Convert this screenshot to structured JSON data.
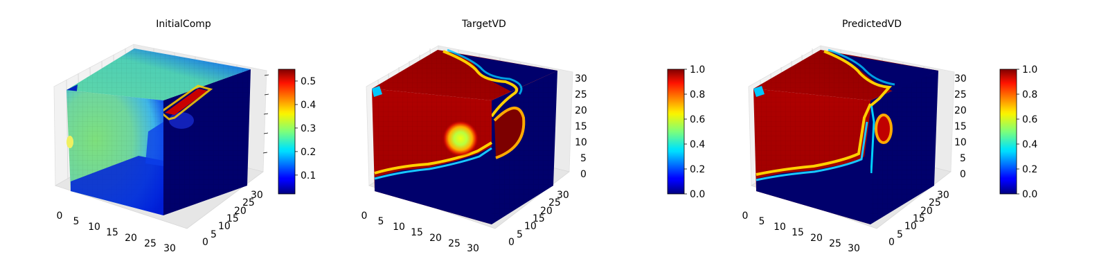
{
  "colors": {
    "colormap": "jet",
    "axis_pane": "#f2f2f2",
    "grid": "#d6d6d6"
  },
  "chart_data": [
    {
      "type": "voxel-3d",
      "title": "InitialComp",
      "x_ticks": [
        "0",
        "5",
        "10",
        "15",
        "20",
        "25",
        "30"
      ],
      "y_ticks": [
        "0",
        "5",
        "10",
        "15",
        "20",
        "25",
        "30"
      ],
      "z_ticks": [],
      "colorbar": {
        "range": [
          0.02,
          0.55
        ],
        "ticks": [
          "0.1",
          "0.2",
          "0.3",
          "0.4",
          "0.5"
        ],
        "tick_values": [
          0.1,
          0.2,
          0.3,
          0.4,
          0.5
        ]
      }
    },
    {
      "type": "voxel-3d",
      "title": "TargetVD",
      "x_ticks": [
        "0",
        "5",
        "10",
        "15",
        "20",
        "25",
        "30"
      ],
      "y_ticks": [
        "0",
        "5",
        "10",
        "15",
        "20",
        "25",
        "30"
      ],
      "z_ticks": [
        "0",
        "5",
        "10",
        "15",
        "20",
        "25",
        "30"
      ],
      "colorbar": {
        "range": [
          0,
          1
        ],
        "ticks": [
          "0.0",
          "0.2",
          "0.4",
          "0.6",
          "0.8",
          "1.0"
        ],
        "tick_values": [
          0,
          0.2,
          0.4,
          0.6,
          0.8,
          1.0
        ]
      }
    },
    {
      "type": "voxel-3d",
      "title": "PredictedVD",
      "x_ticks": [
        "0",
        "5",
        "10",
        "15",
        "20",
        "25",
        "30"
      ],
      "y_ticks": [
        "0",
        "5",
        "10",
        "15",
        "20",
        "25",
        "30"
      ],
      "z_ticks": [
        "0",
        "5",
        "10",
        "15",
        "20",
        "25",
        "30"
      ],
      "colorbar": {
        "range": [
          0,
          1
        ],
        "ticks": [
          "0.0",
          "0.2",
          "0.4",
          "0.6",
          "0.8",
          "1.0"
        ],
        "tick_values": [
          0,
          0.2,
          0.4,
          0.6,
          0.8,
          1.0
        ]
      }
    }
  ]
}
